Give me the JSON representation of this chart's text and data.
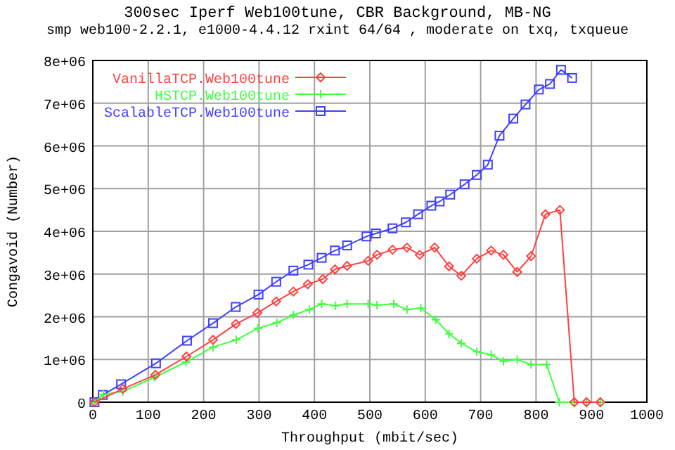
{
  "chart_data": {
    "type": "line",
    "title": "300sec Iperf  Web100tune, CBR Background, MB-NG",
    "subtitle": "smp web100-2.2.1, e1000-4.4.12 rxint 64/64 , moderate on txq, txqueue",
    "xlabel": "Throughput (mbit/sec)",
    "ylabel": "Congavoid (Number)",
    "xlim": [
      0,
      1000
    ],
    "xticks": [
      0,
      100,
      200,
      300,
      400,
      500,
      600,
      700,
      800,
      900,
      1000
    ],
    "ylim": [
      0,
      8000000
    ],
    "yticks": [
      0,
      {
        "value": 1000000,
        "label": "1e+06"
      },
      {
        "value": 2000000,
        "label": "2e+06"
      },
      {
        "value": 3000000,
        "label": "3e+06"
      },
      {
        "value": 4000000,
        "label": "4e+06"
      },
      {
        "value": 5000000,
        "label": "5e+06"
      },
      {
        "value": 6000000,
        "label": "6e+06"
      },
      {
        "value": 7000000,
        "label": "7e+06"
      },
      {
        "value": 8000000,
        "label": "8e+06"
      }
    ],
    "grid": true,
    "legend": "top left",
    "line_style": "solid",
    "series": [
      {
        "name": "VanillaTCP.Web100tune",
        "color": "#ff4040",
        "marker": "diamond",
        "x": [
          3,
          19,
          54,
          113,
          169,
          217,
          258,
          297,
          331,
          362,
          388,
          415,
          437,
          459,
          497,
          513,
          541,
          567,
          590,
          617,
          643,
          665,
          693,
          719,
          741,
          766,
          791,
          817,
          843,
          869,
          891,
          916
        ],
        "values": [
          0,
          null,
          310000,
          640000,
          1070000,
          1460000,
          1830000,
          2090000,
          2360000,
          2590000,
          2760000,
          2880000,
          3110000,
          3190000,
          3310000,
          3450000,
          3570000,
          3620000,
          3450000,
          3620000,
          3180000,
          2960000,
          3360000,
          3550000,
          3450000,
          3050000,
          3420000,
          4400000,
          4500000,
          0,
          0,
          0
        ]
      },
      {
        "name": "HSTCP.Web100tune",
        "color": "#40ff40",
        "marker": "cross",
        "x": [
          3,
          19,
          54,
          111,
          168,
          217,
          259,
          298,
          332,
          362,
          391,
          413,
          438,
          459,
          497,
          513,
          543,
          567,
          592,
          619,
          643,
          665,
          693,
          719,
          741,
          766,
          791,
          819,
          842,
          869,
          891,
          916
        ],
        "values": [
          0,
          180000,
          250000,
          580000,
          940000,
          1290000,
          1460000,
          1730000,
          1860000,
          2040000,
          2170000,
          2300000,
          2260000,
          2300000,
          2300000,
          2270000,
          2300000,
          2170000,
          2200000,
          1930000,
          1600000,
          1380000,
          1180000,
          1110000,
          960000,
          1000000,
          880000,
          880000,
          0,
          0,
          0,
          0
        ]
      },
      {
        "name": "ScalableTCP.Web100tune",
        "color": "#4040ff",
        "marker": "square",
        "x": [
          3,
          18,
          51,
          114,
          170,
          217,
          258,
          299,
          331,
          362,
          389,
          413,
          437,
          459,
          494,
          511,
          541,
          565,
          587,
          611,
          626,
          645,
          671,
          693,
          713,
          734,
          759,
          781,
          805,
          825,
          845,
          865
        ],
        "values": [
          0,
          170000,
          420000,
          910000,
          1440000,
          1850000,
          2230000,
          2520000,
          2820000,
          3080000,
          3220000,
          3380000,
          3550000,
          3670000,
          3880000,
          3950000,
          4070000,
          4210000,
          4400000,
          4600000,
          4700000,
          4860000,
          5100000,
          5320000,
          5560000,
          6240000,
          6640000,
          6970000,
          7320000,
          7450000,
          7780000,
          7590000
        ]
      }
    ]
  }
}
